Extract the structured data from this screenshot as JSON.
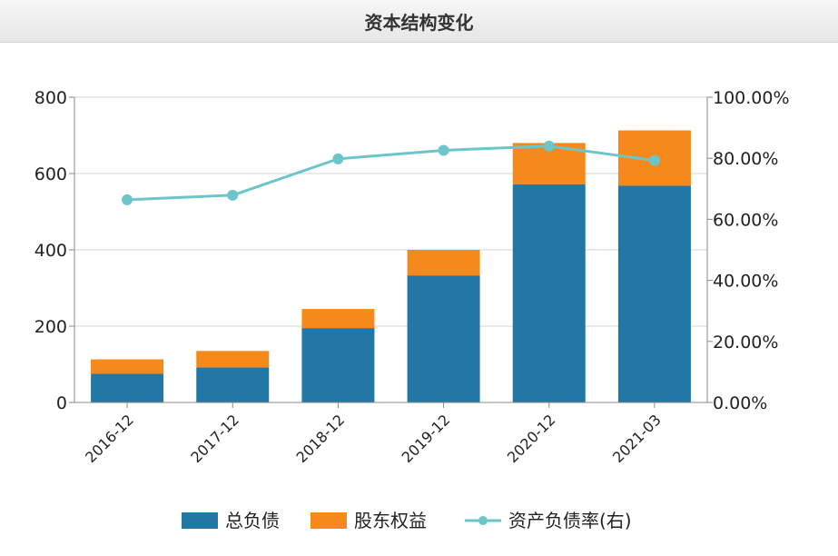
{
  "header": {
    "title": "资本结构变化"
  },
  "chart_data": {
    "type": "bar",
    "stacked": true,
    "title": "资本结构变化",
    "categories": [
      "2016-12",
      "2017-12",
      "2018-12",
      "2019-12",
      "2020-12",
      "2021-03"
    ],
    "series": [
      {
        "name": "总负债",
        "type": "bar",
        "axis": "left",
        "color": "#2277a5",
        "values": [
          75,
          92,
          195,
          333,
          572,
          568
        ]
      },
      {
        "name": "股东权益",
        "type": "bar",
        "axis": "left",
        "color": "#f5891b",
        "values": [
          38,
          43,
          50,
          67,
          108,
          145
        ]
      },
      {
        "name": "资产负债率(右)",
        "type": "line",
        "axis": "right",
        "color": "#6cc5c8",
        "values": [
          66.4,
          67.9,
          79.8,
          82.6,
          84.0,
          79.3
        ]
      }
    ],
    "y_left": {
      "min": 0,
      "max": 800,
      "ticks": [
        "0",
        "200",
        "400",
        "600",
        "800"
      ]
    },
    "y_right": {
      "min": 0,
      "max": 100,
      "ticks": [
        "0.00%",
        "20.00%",
        "40.00%",
        "60.00%",
        "80.00%",
        "100.00%"
      ]
    },
    "grid": true,
    "legend_position": "bottom"
  }
}
